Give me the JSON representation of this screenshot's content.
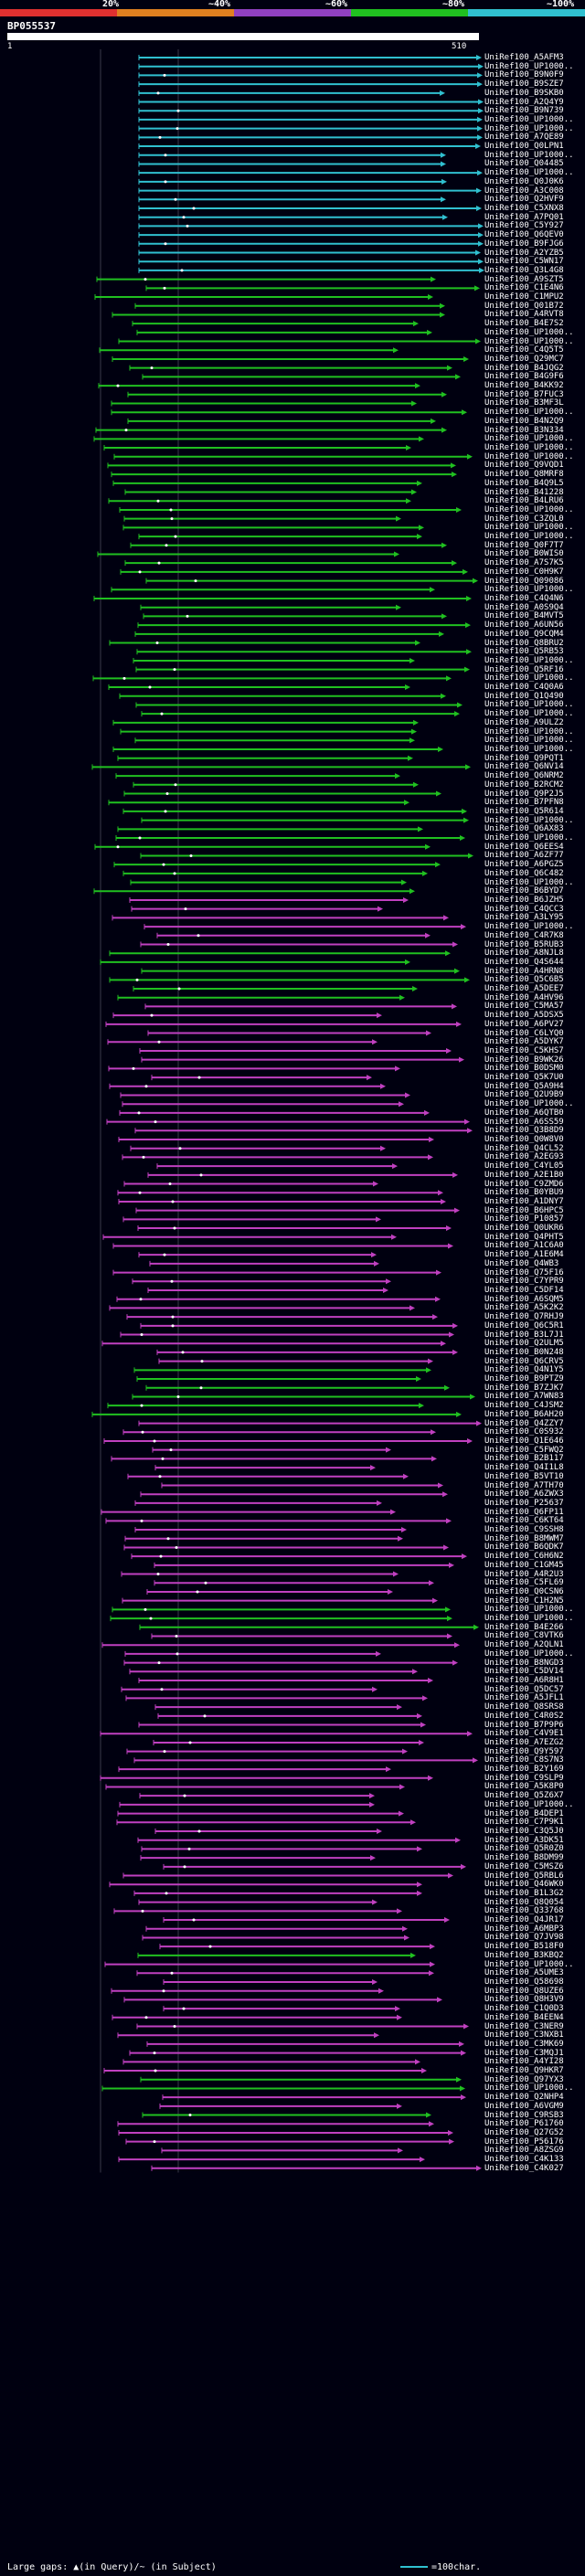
{
  "header": {
    "query_id": "BP055537",
    "ruler_start": "1",
    "ruler_end": "510",
    "percent_labels": [
      "20%",
      "~40%",
      "~60%",
      "~80%",
      "~100%"
    ],
    "percent_colors": [
      "#e03030",
      "#e08020",
      "#9040c0",
      "#20c020",
      "#30c0d0"
    ]
  },
  "colors": {
    "background": "#000010",
    "cyan": "#30c0d0",
    "green": "#20c020",
    "magenta": "#c040c0"
  },
  "hits": [
    {
      "label": "UniRef100_A5AFM3",
      "color": "cyan"
    },
    {
      "label": "UniRef100_UP1000..",
      "color": "cyan"
    },
    {
      "label": "UniRef100_B9N0F9",
      "color": "cyan"
    },
    {
      "label": "UniRef100_B9SZE7",
      "color": "cyan"
    },
    {
      "label": "UniRef100_B9SKB0",
      "color": "cyan"
    },
    {
      "label": "UniRef100_A2Q4Y9",
      "color": "cyan"
    },
    {
      "label": "UniRef100_B9N739",
      "color": "cyan"
    },
    {
      "label": "UniRef100_UP1000..",
      "color": "cyan"
    },
    {
      "label": "UniRef100_UP1000..",
      "color": "cyan"
    },
    {
      "label": "UniRef100_A7QE89",
      "color": "cyan"
    },
    {
      "label": "UniRef100_Q0LPN1",
      "color": "cyan"
    },
    {
      "label": "UniRef100_UP1000..",
      "color": "cyan"
    },
    {
      "label": "UniRef100_Q04485",
      "color": "cyan"
    },
    {
      "label": "UniRef100_UP1000..",
      "color": "cyan"
    },
    {
      "label": "UniRef100_Q0J0K6",
      "color": "cyan"
    },
    {
      "label": "UniRef100_A3C008",
      "color": "cyan"
    },
    {
      "label": "UniRef100_Q2HVF9",
      "color": "cyan"
    },
    {
      "label": "UniRef100_C5XNX8",
      "color": "cyan"
    },
    {
      "label": "UniRef100_A7PQ01",
      "color": "cyan"
    },
    {
      "label": "UniRef100_C5Y927",
      "color": "cyan"
    },
    {
      "label": "UniRef100_Q6QEV0",
      "color": "cyan"
    },
    {
      "label": "UniRef100_B9FJG6",
      "color": "cyan"
    },
    {
      "label": "UniRef100_A2YZB5",
      "color": "cyan"
    },
    {
      "label": "UniRef100_C5WN17",
      "color": "cyan"
    },
    {
      "label": "UniRef100_Q3L4G8",
      "color": "cyan"
    },
    {
      "label": "UniRef100_A9SZT5",
      "color": "green"
    },
    {
      "label": "UniRef100_C1E4N6",
      "color": "green"
    },
    {
      "label": "UniRef100_C1MPU2",
      "color": "green"
    },
    {
      "label": "UniRef100_Q01B72",
      "color": "green"
    },
    {
      "label": "UniRef100_A4RVT8",
      "color": "green"
    },
    {
      "label": "UniRef100_B4E7S2",
      "color": "green"
    },
    {
      "label": "UniRef100_UP1000..",
      "color": "green"
    },
    {
      "label": "UniRef100_UP1000..",
      "color": "green"
    },
    {
      "label": "UniRef100_C4Q5T5",
      "color": "green"
    },
    {
      "label": "UniRef100_Q29MC7",
      "color": "green"
    },
    {
      "label": "UniRef100_B4JQG2",
      "color": "green"
    },
    {
      "label": "UniRef100_B4G9F6",
      "color": "green"
    },
    {
      "label": "UniRef100_B4KK92",
      "color": "green"
    },
    {
      "label": "UniRef100_B7FUC3",
      "color": "green"
    },
    {
      "label": "UniRef100_B3MF3L",
      "color": "green"
    },
    {
      "label": "UniRef100_UP1000..",
      "color": "green"
    },
    {
      "label": "UniRef100_B4N2Q9",
      "color": "green"
    },
    {
      "label": "UniRef100_B3N334",
      "color": "green"
    },
    {
      "label": "UniRef100_UP1000..",
      "color": "green"
    },
    {
      "label": "UniRef100_UP1000..",
      "color": "green"
    },
    {
      "label": "UniRef100_UP1000..",
      "color": "green"
    },
    {
      "label": "UniRef100_Q9VQD1",
      "color": "green"
    },
    {
      "label": "UniRef100_Q8MRF8",
      "color": "green"
    },
    {
      "label": "UniRef100_B4Q9L5",
      "color": "green"
    },
    {
      "label": "UniRef100_B41228",
      "color": "green"
    },
    {
      "label": "UniRef100_B4LRU6",
      "color": "green"
    },
    {
      "label": "UniRef100_UP1000..",
      "color": "green"
    },
    {
      "label": "UniRef100_C3ZQL0",
      "color": "green"
    },
    {
      "label": "UniRef100_UP1000..",
      "color": "green"
    },
    {
      "label": "UniRef100_UP1000..",
      "color": "green"
    },
    {
      "label": "UniRef100_Q0F7T7",
      "color": "green"
    },
    {
      "label": "UniRef100_B0WIS0",
      "color": "green"
    },
    {
      "label": "UniRef100_A7S7K5",
      "color": "green"
    },
    {
      "label": "UniRef100_C0H9K7",
      "color": "green"
    },
    {
      "label": "UniRef100_Q09086",
      "color": "green"
    },
    {
      "label": "UniRef100_UP1000..",
      "color": "green"
    },
    {
      "label": "UniRef100_C4Q4N6",
      "color": "green"
    },
    {
      "label": "UniRef100_A0S9Q4",
      "color": "green"
    },
    {
      "label": "UniRef100_B4MVT5",
      "color": "green"
    },
    {
      "label": "UniRef100_A6UN56",
      "color": "green"
    },
    {
      "label": "UniRef100_Q9CQM4",
      "color": "green"
    },
    {
      "label": "UniRef100_Q8BRU2",
      "color": "green"
    },
    {
      "label": "UniRef100_Q5RB53",
      "color": "green"
    },
    {
      "label": "UniRef100_UP1000..",
      "color": "green"
    },
    {
      "label": "UniRef100_Q5RF16",
      "color": "green"
    },
    {
      "label": "UniRef100_UP1000..",
      "color": "green"
    },
    {
      "label": "UniRef100_C4Q0A6",
      "color": "green"
    },
    {
      "label": "UniRef100_Q1Q490",
      "color": "green"
    },
    {
      "label": "UniRef100_UP1000..",
      "color": "green"
    },
    {
      "label": "UniRef100_UP1000..",
      "color": "green"
    },
    {
      "label": "UniRef100_A9ULZ2",
      "color": "green"
    },
    {
      "label": "UniRef100_UP1000..",
      "color": "green"
    },
    {
      "label": "UniRef100_UP1000..",
      "color": "green"
    },
    {
      "label": "UniRef100_UP1000..",
      "color": "green"
    },
    {
      "label": "UniRef100_Q9PQT1",
      "color": "green"
    },
    {
      "label": "UniRef100_Q6NV14",
      "color": "green"
    },
    {
      "label": "UniRef100_Q6NRM2",
      "color": "green"
    },
    {
      "label": "UniRef100_B2RCM2",
      "color": "green"
    },
    {
      "label": "UniRef100_Q9P2J5",
      "color": "green"
    },
    {
      "label": "UniRef100_B7PFN8",
      "color": "green"
    },
    {
      "label": "UniRef100_Q5R614",
      "color": "green"
    },
    {
      "label": "UniRef100_UP1000..",
      "color": "green"
    },
    {
      "label": "UniRef100_Q6AX83",
      "color": "green"
    },
    {
      "label": "UniRef100_UP1000..",
      "color": "green"
    },
    {
      "label": "UniRef100_Q6EES4",
      "color": "green"
    },
    {
      "label": "UniRef100_A6ZF77",
      "color": "green"
    },
    {
      "label": "UniRef100_A6PGZ5",
      "color": "green"
    },
    {
      "label": "UniRef100_Q6C482",
      "color": "green"
    },
    {
      "label": "UniRef100_UP1000..",
      "color": "green"
    },
    {
      "label": "UniRef100_B6BYD7",
      "color": "green"
    },
    {
      "label": "UniRef100_B6JZH5",
      "color": "magenta"
    },
    {
      "label": "UniRef100_C4QCC3",
      "color": "magenta"
    },
    {
      "label": "UniRef100_A3LY95",
      "color": "magenta"
    },
    {
      "label": "UniRef100_UP1000..",
      "color": "magenta"
    },
    {
      "label": "UniRef100_C4R7K8",
      "color": "magenta"
    },
    {
      "label": "UniRef100_B5RUB3",
      "color": "magenta"
    },
    {
      "label": "UniRef100_A8NJL8",
      "color": "green"
    },
    {
      "label": "UniRef100_Q4S644",
      "color": "green"
    },
    {
      "label": "UniRef100_A4HRN8",
      "color": "green"
    },
    {
      "label": "UniRef100_Q5C6B5",
      "color": "green"
    },
    {
      "label": "UniRef100_A5DEE7",
      "color": "green"
    },
    {
      "label": "UniRef100_A4HV96",
      "color": "green"
    },
    {
      "label": "UniRef100_C5MA57",
      "color": "magenta"
    },
    {
      "label": "UniRef100_A5DSX5",
      "color": "magenta"
    },
    {
      "label": "UniRef100_A6PV27",
      "color": "magenta"
    },
    {
      "label": "UniRef100_C6LYQ0",
      "color": "magenta"
    },
    {
      "label": "UniRef100_A5DYK7",
      "color": "magenta"
    },
    {
      "label": "UniRef100_C5KHS7",
      "color": "magenta"
    },
    {
      "label": "UniRef100_B9WK26",
      "color": "magenta"
    },
    {
      "label": "UniRef100_B0DSM0",
      "color": "magenta"
    },
    {
      "label": "UniRef100_Q5K7U0",
      "color": "magenta"
    },
    {
      "label": "UniRef100_Q5A9H4",
      "color": "magenta"
    },
    {
      "label": "UniRef100_Q2U9B9",
      "color": "magenta"
    },
    {
      "label": "UniRef100_UP1000..",
      "color": "magenta"
    },
    {
      "label": "UniRef100_A6QTB0",
      "color": "magenta"
    },
    {
      "label": "UniRef100_A6SS59",
      "color": "magenta"
    },
    {
      "label": "UniRef100_Q3B8D9",
      "color": "magenta"
    },
    {
      "label": "UniRef100_Q0W8V0",
      "color": "magenta"
    },
    {
      "label": "UniRef100_Q4CL52",
      "color": "magenta"
    },
    {
      "label": "UniRef100_A2EG93",
      "color": "magenta"
    },
    {
      "label": "UniRef100_C4YL05",
      "color": "magenta"
    },
    {
      "label": "UniRef100_A2E1B0",
      "color": "magenta"
    },
    {
      "label": "UniRef100_C9ZMD6",
      "color": "magenta"
    },
    {
      "label": "UniRef100_B0YBU9",
      "color": "magenta"
    },
    {
      "label": "UniRef100_A1DNY7",
      "color": "magenta"
    },
    {
      "label": "UniRef100_B6HPC5",
      "color": "magenta"
    },
    {
      "label": "UniRef100_P10857",
      "color": "magenta"
    },
    {
      "label": "UniRef100_Q0UKR6",
      "color": "magenta"
    },
    {
      "label": "UniRef100_Q4PHT5",
      "color": "magenta"
    },
    {
      "label": "UniRef100_A1C6A0",
      "color": "magenta"
    },
    {
      "label": "UniRef100_A1E6M4",
      "color": "magenta"
    },
    {
      "label": "UniRef100_Q4WB3",
      "color": "magenta"
    },
    {
      "label": "UniRef100_Q75F16",
      "color": "magenta"
    },
    {
      "label": "UniRef100_C7YPR9",
      "color": "magenta"
    },
    {
      "label": "UniRef100_C5DF14",
      "color": "magenta"
    },
    {
      "label": "UniRef100_A6SQM5",
      "color": "magenta"
    },
    {
      "label": "UniRef100_A5K2K2",
      "color": "magenta"
    },
    {
      "label": "UniRef100_Q7RHJ9",
      "color": "magenta"
    },
    {
      "label": "UniRef100_Q6C5R1",
      "color": "magenta"
    },
    {
      "label": "UniRef100_B3L7J1",
      "color": "magenta"
    },
    {
      "label": "UniRef100_Q2ULM5",
      "color": "magenta"
    },
    {
      "label": "UniRef100_B0N248",
      "color": "magenta"
    },
    {
      "label": "UniRef100_Q6CRV5",
      "color": "magenta"
    },
    {
      "label": "UniRef100_Q4N1Y5",
      "color": "green"
    },
    {
      "label": "UniRef100_B9PTZ9",
      "color": "green"
    },
    {
      "label": "UniRef100_B7ZJK7",
      "color": "green"
    },
    {
      "label": "UniRef100_A7WN83",
      "color": "green"
    },
    {
      "label": "UniRef100_C4JSM2",
      "color": "green"
    },
    {
      "label": "UniRef100_B6AH20",
      "color": "green"
    },
    {
      "label": "UniRef100_Q4ZZY7",
      "color": "magenta"
    },
    {
      "label": "UniRef100_C0S932",
      "color": "magenta"
    },
    {
      "label": "UniRef100_Q1E646",
      "color": "magenta"
    },
    {
      "label": "UniRef100_C5FWQ2",
      "color": "magenta"
    },
    {
      "label": "UniRef100_B2B117",
      "color": "magenta"
    },
    {
      "label": "UniRef100_Q4I1L8",
      "color": "magenta"
    },
    {
      "label": "UniRef100_B5VT10",
      "color": "magenta"
    },
    {
      "label": "UniRef100_A7TH70",
      "color": "magenta"
    },
    {
      "label": "UniRef100_A6ZWX3",
      "color": "magenta"
    },
    {
      "label": "UniRef100_P25637",
      "color": "magenta"
    },
    {
      "label": "UniRef100_Q6FP11",
      "color": "magenta"
    },
    {
      "label": "UniRef100_C6KT64",
      "color": "magenta"
    },
    {
      "label": "UniRef100_C9SSH8",
      "color": "magenta"
    },
    {
      "label": "UniRef100_B8MWM7",
      "color": "magenta"
    },
    {
      "label": "UniRef100_B6QDK7",
      "color": "magenta"
    },
    {
      "label": "UniRef100_C6H6N2",
      "color": "magenta"
    },
    {
      "label": "UniRef100_C1GM45",
      "color": "magenta"
    },
    {
      "label": "UniRef100_A4R2U3",
      "color": "magenta"
    },
    {
      "label": "UniRef100_C5FL69",
      "color": "magenta"
    },
    {
      "label": "UniRef100_Q0CSN6",
      "color": "magenta"
    },
    {
      "label": "UniRef100_C1H2N5",
      "color": "magenta"
    },
    {
      "label": "UniRef100_UP1000..",
      "color": "green"
    },
    {
      "label": "UniRef100_UP1000..",
      "color": "green"
    },
    {
      "label": "UniRef100_B4E266",
      "color": "green"
    },
    {
      "label": "UniRef100_C8VTK6",
      "color": "magenta"
    },
    {
      "label": "UniRef100_A2QLN1",
      "color": "magenta"
    },
    {
      "label": "UniRef100_UP1000..",
      "color": "magenta"
    },
    {
      "label": "UniRef100_B8NGD3",
      "color": "magenta"
    },
    {
      "label": "UniRef100_C5DV14",
      "color": "magenta"
    },
    {
      "label": "UniRef100_A6R8H1",
      "color": "magenta"
    },
    {
      "label": "UniRef100_Q5DC57",
      "color": "magenta"
    },
    {
      "label": "UniRef100_A5JFL1",
      "color": "magenta"
    },
    {
      "label": "UniRef100_Q8SRS8",
      "color": "magenta"
    },
    {
      "label": "UniRef100_C4R0S2",
      "color": "magenta"
    },
    {
      "label": "UniRef100_B7P9P6",
      "color": "magenta"
    },
    {
      "label": "UniRef100_C4V9E1",
      "color": "magenta"
    },
    {
      "label": "UniRef100_A7EZG2",
      "color": "magenta"
    },
    {
      "label": "UniRef100_Q9Y597",
      "color": "magenta"
    },
    {
      "label": "UniRef100_C8S7N3",
      "color": "magenta"
    },
    {
      "label": "UniRef100_B2Y169",
      "color": "magenta"
    },
    {
      "label": "UniRef100_C9SLP9",
      "color": "magenta"
    },
    {
      "label": "UniRef100_A5K8P0",
      "color": "magenta"
    },
    {
      "label": "UniRef100_Q5Z6X7",
      "color": "magenta"
    },
    {
      "label": "UniRef100_UP1000..",
      "color": "magenta"
    },
    {
      "label": "UniRef100_B4DEP1",
      "color": "magenta"
    },
    {
      "label": "UniRef100_C7P9K1",
      "color": "magenta"
    },
    {
      "label": "UniRef100_C3Q5J0",
      "color": "magenta"
    },
    {
      "label": "UniRef100_A3DK51",
      "color": "magenta"
    },
    {
      "label": "UniRef100_Q5R0Z0",
      "color": "magenta"
    },
    {
      "label": "UniRef100_B8DM99",
      "color": "magenta"
    },
    {
      "label": "UniRef100_C5MSZ6",
      "color": "magenta"
    },
    {
      "label": "UniRef100_Q5RBL6",
      "color": "magenta"
    },
    {
      "label": "UniRef100_Q46WK0",
      "color": "magenta"
    },
    {
      "label": "UniRef100_B1L3G2",
      "color": "magenta"
    },
    {
      "label": "UniRef100_Q8Q054",
      "color": "magenta"
    },
    {
      "label": "UniRef100_Q33768",
      "color": "magenta"
    },
    {
      "label": "UniRef100_Q4JR17",
      "color": "magenta"
    },
    {
      "label": "UniRef100_A6MBP3",
      "color": "magenta"
    },
    {
      "label": "UniRef100_Q7JV98",
      "color": "magenta"
    },
    {
      "label": "UniRef100_B518F0",
      "color": "magenta"
    },
    {
      "label": "UniRef100_B3KBQ2",
      "color": "green"
    },
    {
      "label": "UniRef100_UP1000..",
      "color": "magenta"
    },
    {
      "label": "UniRef100_A5UME3",
      "color": "magenta"
    },
    {
      "label": "UniRef100_Q58698",
      "color": "magenta"
    },
    {
      "label": "UniRef100_Q8UZE6",
      "color": "magenta"
    },
    {
      "label": "UniRef100_Q8H3V9",
      "color": "magenta"
    },
    {
      "label": "UniRef100_C1Q0D3",
      "color": "magenta"
    },
    {
      "label": "UniRef100_B4EEN4",
      "color": "magenta"
    },
    {
      "label": "UniRef100_C3NER9",
      "color": "magenta"
    },
    {
      "label": "UniRef100_C3NXB1",
      "color": "magenta"
    },
    {
      "label": "UniRef100_C3MK69",
      "color": "magenta"
    },
    {
      "label": "UniRef100_C3MQJ1",
      "color": "magenta"
    },
    {
      "label": "UniRef100_A4YI28",
      "color": "magenta"
    },
    {
      "label": "UniRef100_Q9HKR7",
      "color": "magenta"
    },
    {
      "label": "UniRef100_Q97YX3",
      "color": "green"
    },
    {
      "label": "UniRef100_UP1000..",
      "color": "green"
    },
    {
      "label": "UniRef100_Q2NHP4",
      "color": "magenta"
    },
    {
      "label": "UniRef100_A6VGM9",
      "color": "magenta"
    },
    {
      "label": "UniRef100_C9RSB3",
      "color": "green"
    },
    {
      "label": "UniRef100_P61760",
      "color": "magenta"
    },
    {
      "label": "UniRef100_Q27G52",
      "color": "magenta"
    },
    {
      "label": "UniRef100_P56176",
      "color": "magenta"
    },
    {
      "label": "UniRef100_A8ZSG9",
      "color": "magenta"
    },
    {
      "label": "UniRef100_C4K133",
      "color": "magenta"
    },
    {
      "label": "UniRef100_C4K027",
      "color": "magenta"
    }
  ],
  "footer": {
    "gaps_text": "Large gaps: ▲(in Query)/~ (in Subject)",
    "scale_text": "=100char."
  }
}
